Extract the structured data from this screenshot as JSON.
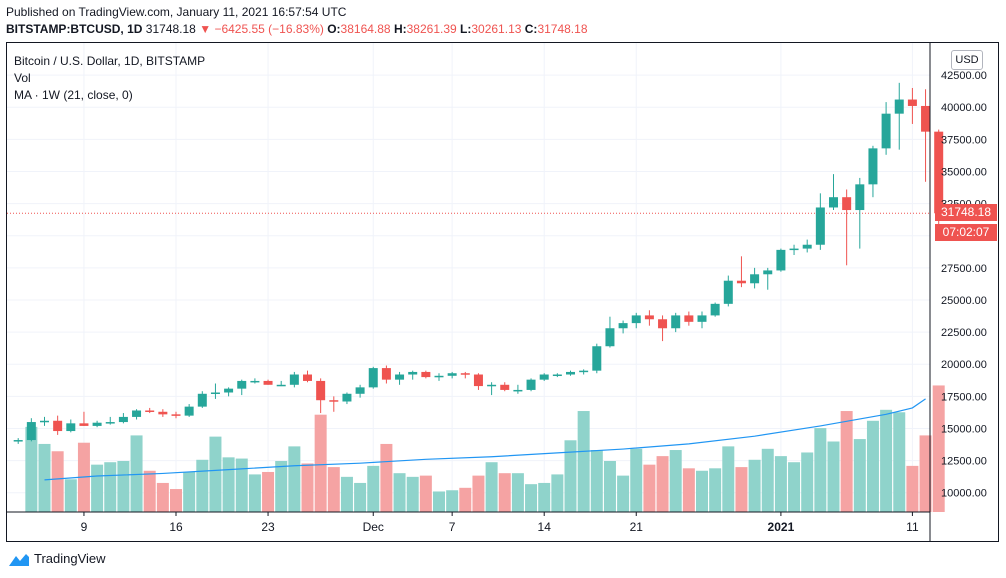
{
  "header": {
    "published": "Published on TradingView.com, January 11, 2021 16:57:54 UTC",
    "symbol": "BITSTAMP:BTCUSD, 1D",
    "last": "31748.18",
    "change": "−6425.55 (−16.83%)",
    "o_label": "O:",
    "o": "38164.88",
    "h_label": "H:",
    "h": "38261.39",
    "l_label": "L:",
    "l": "30261.13",
    "c_label": "C:",
    "c": "31748.18"
  },
  "legend": {
    "title": "Bitcoin / U.S. Dollar, 1D, BITSTAMP",
    "vol": "Vol",
    "ma": "MA · 1W (21, close, 0)"
  },
  "axis": {
    "currency_button": "USD",
    "price_tag": "31748.18",
    "countdown_tag": "07:02:07"
  },
  "footer": {
    "brand": "TradingView"
  },
  "colors": {
    "up": "#26a69a",
    "down": "#ef5350",
    "ma": "#2196f3",
    "vol_up": "#8fd3cb",
    "vol_down": "#f5a3a3"
  },
  "chart_data": {
    "type": "candlestick",
    "title": "Bitcoin / U.S. Dollar, 1D, BITSTAMP",
    "ylim": [
      8500,
      45000
    ],
    "y_ticks": [
      10000,
      12500,
      15000,
      17500,
      20000,
      22500,
      25000,
      27500,
      30000,
      32500,
      35000,
      37500,
      40000,
      42500
    ],
    "y_tick_labels": [
      "10000.00",
      "12500.00",
      "15000.00",
      "17500.00",
      "20000.00",
      "22500.00",
      "25000.00",
      "27500.00",
      "30000.00",
      "32500.00",
      "35000.00",
      "37500.00",
      "40000.00",
      "42500.00"
    ],
    "x_labels": [
      {
        "label": "9",
        "index": 5
      },
      {
        "label": "16",
        "index": 12
      },
      {
        "label": "23",
        "index": 19
      },
      {
        "label": "Dec",
        "index": 27
      },
      {
        "label": "7",
        "index": 33
      },
      {
        "label": "14",
        "index": 40
      },
      {
        "label": "21",
        "index": 47
      },
      {
        "label": "2021",
        "index": 58
      },
      {
        "label": "11",
        "index": 68
      }
    ],
    "candles": [
      {
        "o": 14100,
        "h": 14250,
        "l": 13800,
        "c": 14100,
        "v": 0
      },
      {
        "o": 14100,
        "h": 15800,
        "l": 14000,
        "c": 15500,
        "v": 14000
      },
      {
        "o": 15500,
        "h": 15900,
        "l": 15200,
        "c": 15600,
        "v": 12600
      },
      {
        "o": 15600,
        "h": 16000,
        "l": 14500,
        "c": 14800,
        "v": 12000
      },
      {
        "o": 14800,
        "h": 15700,
        "l": 14700,
        "c": 15400,
        "v": 9700
      },
      {
        "o": 15400,
        "h": 16300,
        "l": 15200,
        "c": 15200,
        "v": 12700
      },
      {
        "o": 15200,
        "h": 15600,
        "l": 15100,
        "c": 15450,
        "v": 10900
      },
      {
        "o": 15450,
        "h": 15900,
        "l": 15300,
        "c": 15500,
        "v": 11100
      },
      {
        "o": 15500,
        "h": 16200,
        "l": 15400,
        "c": 15900,
        "v": 11200
      },
      {
        "o": 15900,
        "h": 16500,
        "l": 15700,
        "c": 16400,
        "v": 13300
      },
      {
        "o": 16400,
        "h": 16600,
        "l": 16200,
        "c": 16300,
        "v": 10400
      },
      {
        "o": 16300,
        "h": 16500,
        "l": 15900,
        "c": 16100,
        "v": 9400
      },
      {
        "o": 16100,
        "h": 16300,
        "l": 15800,
        "c": 16000,
        "v": 8900
      },
      {
        "o": 16000,
        "h": 16900,
        "l": 15900,
        "c": 16700,
        "v": 10300
      },
      {
        "o": 16700,
        "h": 17900,
        "l": 16600,
        "c": 17700,
        "v": 11300
      },
      {
        "o": 17700,
        "h": 18500,
        "l": 17300,
        "c": 17800,
        "v": 13200
      },
      {
        "o": 17800,
        "h": 18200,
        "l": 17500,
        "c": 18100,
        "v": 11500
      },
      {
        "o": 18100,
        "h": 18800,
        "l": 17600,
        "c": 18700,
        "v": 11400
      },
      {
        "o": 18700,
        "h": 18900,
        "l": 18500,
        "c": 18700,
        "v": 10100
      },
      {
        "o": 18700,
        "h": 18800,
        "l": 18400,
        "c": 18400,
        "v": 10300
      },
      {
        "o": 18400,
        "h": 18700,
        "l": 18300,
        "c": 18400,
        "v": 11200
      },
      {
        "o": 18400,
        "h": 19400,
        "l": 18200,
        "c": 19200,
        "v": 12400
      },
      {
        "o": 19200,
        "h": 19500,
        "l": 18600,
        "c": 18700,
        "v": 11000
      },
      {
        "o": 18700,
        "h": 18900,
        "l": 16200,
        "c": 17200,
        "v": 15000
      },
      {
        "o": 17200,
        "h": 17500,
        "l": 16300,
        "c": 17100,
        "v": 10700
      },
      {
        "o": 17100,
        "h": 17800,
        "l": 16900,
        "c": 17700,
        "v": 9900
      },
      {
        "o": 17700,
        "h": 18400,
        "l": 17400,
        "c": 18200,
        "v": 9400
      },
      {
        "o": 18200,
        "h": 19800,
        "l": 18100,
        "c": 19700,
        "v": 10800
      },
      {
        "o": 19700,
        "h": 19900,
        "l": 18500,
        "c": 18800,
        "v": 12600
      },
      {
        "o": 18800,
        "h": 19400,
        "l": 18400,
        "c": 19200,
        "v": 10200
      },
      {
        "o": 19200,
        "h": 19500,
        "l": 18800,
        "c": 19400,
        "v": 9900
      },
      {
        "o": 19400,
        "h": 19500,
        "l": 18900,
        "c": 19000,
        "v": 10000
      },
      {
        "o": 19000,
        "h": 19300,
        "l": 18700,
        "c": 19100,
        "v": 8700
      },
      {
        "o": 19100,
        "h": 19400,
        "l": 18900,
        "c": 19300,
        "v": 8800
      },
      {
        "o": 19300,
        "h": 19400,
        "l": 18900,
        "c": 19200,
        "v": 9000
      },
      {
        "o": 19200,
        "h": 19300,
        "l": 18000,
        "c": 18300,
        "v": 10000
      },
      {
        "o": 18300,
        "h": 18600,
        "l": 17600,
        "c": 18400,
        "v": 11100
      },
      {
        "o": 18400,
        "h": 18600,
        "l": 17900,
        "c": 18000,
        "v": 10200
      },
      {
        "o": 18000,
        "h": 18400,
        "l": 17700,
        "c": 18000,
        "v": 10200
      },
      {
        "o": 18000,
        "h": 18900,
        "l": 17900,
        "c": 18800,
        "v": 9300
      },
      {
        "o": 18800,
        "h": 19300,
        "l": 18700,
        "c": 19200,
        "v": 9400
      },
      {
        "o": 19200,
        "h": 19300,
        "l": 19000,
        "c": 19200,
        "v": 10100
      },
      {
        "o": 19200,
        "h": 19500,
        "l": 19100,
        "c": 19400,
        "v": 12900
      },
      {
        "o": 19400,
        "h": 19600,
        "l": 19200,
        "c": 19500,
        "v": 15300
      },
      {
        "o": 19500,
        "h": 21600,
        "l": 19300,
        "c": 21400,
        "v": 12100
      },
      {
        "o": 21400,
        "h": 23700,
        "l": 21300,
        "c": 22800,
        "v": 11200
      },
      {
        "o": 22800,
        "h": 23400,
        "l": 22400,
        "c": 23200,
        "v": 10000
      },
      {
        "o": 23200,
        "h": 24000,
        "l": 22800,
        "c": 23800,
        "v": 12200
      },
      {
        "o": 23800,
        "h": 24200,
        "l": 23000,
        "c": 23500,
        "v": 10900
      },
      {
        "o": 23500,
        "h": 23800,
        "l": 21800,
        "c": 22800,
        "v": 11600
      },
      {
        "o": 22800,
        "h": 24000,
        "l": 22500,
        "c": 23800,
        "v": 12100
      },
      {
        "o": 23800,
        "h": 24100,
        "l": 23000,
        "c": 23300,
        "v": 10600
      },
      {
        "o": 23300,
        "h": 24100,
        "l": 22800,
        "c": 23800,
        "v": 10400
      },
      {
        "o": 23800,
        "h": 24800,
        "l": 23700,
        "c": 24700,
        "v": 10600
      },
      {
        "o": 24700,
        "h": 26900,
        "l": 24500,
        "c": 26500,
        "v": 12400
      },
      {
        "o": 26500,
        "h": 28400,
        "l": 26000,
        "c": 26300,
        "v": 10700
      },
      {
        "o": 26300,
        "h": 27500,
        "l": 25900,
        "c": 27000,
        "v": 11300
      },
      {
        "o": 27000,
        "h": 27500,
        "l": 25800,
        "c": 27300,
        "v": 12200
      },
      {
        "o": 27300,
        "h": 29000,
        "l": 27200,
        "c": 28900,
        "v": 11600
      },
      {
        "o": 28900,
        "h": 29300,
        "l": 28500,
        "c": 29000,
        "v": 11100
      },
      {
        "o": 29000,
        "h": 29700,
        "l": 28700,
        "c": 29300,
        "v": 11900
      },
      {
        "o": 29300,
        "h": 33300,
        "l": 28900,
        "c": 32200,
        "v": 13900
      },
      {
        "o": 32200,
        "h": 34800,
        "l": 32000,
        "c": 33000,
        "v": 12800
      },
      {
        "o": 33000,
        "h": 33600,
        "l": 27700,
        "c": 32000,
        "v": 15300
      },
      {
        "o": 32000,
        "h": 34500,
        "l": 29000,
        "c": 34000,
        "v": 13000
      },
      {
        "o": 34000,
        "h": 37000,
        "l": 33000,
        "c": 36800,
        "v": 14500
      },
      {
        "o": 36800,
        "h": 40400,
        "l": 36300,
        "c": 39500,
        "v": 15400
      },
      {
        "o": 39500,
        "h": 41900,
        "l": 36700,
        "c": 40600,
        "v": 15200
      },
      {
        "o": 40600,
        "h": 41500,
        "l": 38700,
        "c": 40100,
        "v": 10800
      },
      {
        "o": 40100,
        "h": 41400,
        "l": 34200,
        "c": 38100,
        "v": 13300
      },
      {
        "o": 38100,
        "h": 38261,
        "l": 30261,
        "c": 31748,
        "v": 17400
      }
    ],
    "ma": [
      {
        "i": 2,
        "value": 11000
      },
      {
        "i": 6,
        "value": 11300
      },
      {
        "i": 11,
        "value": 11500
      },
      {
        "i": 16,
        "value": 11800
      },
      {
        "i": 21,
        "value": 12100
      },
      {
        "i": 26,
        "value": 12300
      },
      {
        "i": 31,
        "value": 12600
      },
      {
        "i": 36,
        "value": 12800
      },
      {
        "i": 41,
        "value": 13100
      },
      {
        "i": 46,
        "value": 13400
      },
      {
        "i": 51,
        "value": 13800
      },
      {
        "i": 56,
        "value": 14400
      },
      {
        "i": 61,
        "value": 15200
      },
      {
        "i": 66,
        "value": 16100
      },
      {
        "i": 68,
        "value": 16600
      },
      {
        "i": 69,
        "value": 17300
      }
    ],
    "vol_scale_max": 17600,
    "vol_scale_min": 8000
  }
}
